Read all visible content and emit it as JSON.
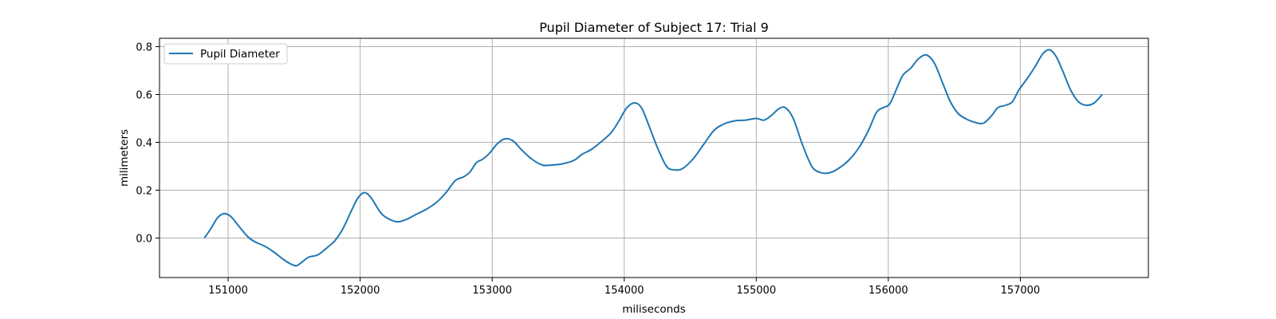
{
  "chart_data": {
    "type": "line",
    "title": "Pupil Diameter of Subject 17: Trial 9",
    "xlabel": "miliseconds",
    "ylabel": "milimeters",
    "xlim": [
      150480,
      157970
    ],
    "ylim": [
      -0.165,
      0.835
    ],
    "xticks": [
      151000,
      152000,
      153000,
      154000,
      155000,
      156000,
      157000
    ],
    "yticks": [
      0.0,
      0.2,
      0.4,
      0.6,
      0.8
    ],
    "ytick_labels": [
      "0.0",
      "0.2",
      "0.4",
      "0.6",
      "0.8"
    ],
    "grid": true,
    "legend": {
      "position": "upper-left",
      "entries": [
        "Pupil Diameter"
      ]
    },
    "colors": {
      "series": "#1f77b4",
      "grid": "#b0b0b0",
      "axes": "#000000"
    },
    "series": [
      {
        "name": "Pupil Diameter",
        "points": [
          [
            150820,
            0.0
          ],
          [
            150870,
            0.04
          ],
          [
            150920,
            0.085
          ],
          [
            150970,
            0.102
          ],
          [
            151020,
            0.09
          ],
          [
            151080,
            0.05
          ],
          [
            151150,
            0.005
          ],
          [
            151200,
            -0.015
          ],
          [
            151280,
            -0.035
          ],
          [
            151350,
            -0.06
          ],
          [
            151420,
            -0.09
          ],
          [
            151480,
            -0.11
          ],
          [
            151520,
            -0.115
          ],
          [
            151560,
            -0.1
          ],
          [
            151610,
            -0.08
          ],
          [
            151680,
            -0.07
          ],
          [
            151750,
            -0.04
          ],
          [
            151810,
            -0.01
          ],
          [
            151870,
            0.04
          ],
          [
            151930,
            0.11
          ],
          [
            151980,
            0.165
          ],
          [
            152030,
            0.19
          ],
          [
            152080,
            0.17
          ],
          [
            152150,
            0.11
          ],
          [
            152200,
            0.085
          ],
          [
            152280,
            0.068
          ],
          [
            152350,
            0.078
          ],
          [
            152420,
            0.098
          ],
          [
            152500,
            0.12
          ],
          [
            152580,
            0.15
          ],
          [
            152650,
            0.19
          ],
          [
            152720,
            0.24
          ],
          [
            152780,
            0.255
          ],
          [
            152830,
            0.275
          ],
          [
            152880,
            0.315
          ],
          [
            152930,
            0.33
          ],
          [
            152980,
            0.355
          ],
          [
            153040,
            0.395
          ],
          [
            153100,
            0.415
          ],
          [
            153160,
            0.405
          ],
          [
            153220,
            0.37
          ],
          [
            153300,
            0.33
          ],
          [
            153380,
            0.305
          ],
          [
            153450,
            0.305
          ],
          [
            153530,
            0.31
          ],
          [
            153620,
            0.325
          ],
          [
            153680,
            0.35
          ],
          [
            153750,
            0.37
          ],
          [
            153820,
            0.4
          ],
          [
            153900,
            0.44
          ],
          [
            153960,
            0.49
          ],
          [
            154020,
            0.545
          ],
          [
            154080,
            0.565
          ],
          [
            154130,
            0.545
          ],
          [
            154180,
            0.48
          ],
          [
            154250,
            0.38
          ],
          [
            154320,
            0.3
          ],
          [
            154380,
            0.285
          ],
          [
            154440,
            0.29
          ],
          [
            154520,
            0.33
          ],
          [
            154600,
            0.39
          ],
          [
            154680,
            0.45
          ],
          [
            154760,
            0.478
          ],
          [
            154840,
            0.49
          ],
          [
            154920,
            0.493
          ],
          [
            155000,
            0.5
          ],
          [
            155060,
            0.493
          ],
          [
            155120,
            0.515
          ],
          [
            155170,
            0.54
          ],
          [
            155220,
            0.545
          ],
          [
            155280,
            0.5
          ],
          [
            155350,
            0.39
          ],
          [
            155420,
            0.3
          ],
          [
            155480,
            0.275
          ],
          [
            155550,
            0.272
          ],
          [
            155620,
            0.29
          ],
          [
            155700,
            0.325
          ],
          [
            155780,
            0.38
          ],
          [
            155850,
            0.45
          ],
          [
            155910,
            0.525
          ],
          [
            155960,
            0.545
          ],
          [
            156010,
            0.56
          ],
          [
            156060,
            0.62
          ],
          [
            156110,
            0.68
          ],
          [
            156170,
            0.71
          ],
          [
            156230,
            0.75
          ],
          [
            156290,
            0.765
          ],
          [
            156350,
            0.73
          ],
          [
            156410,
            0.65
          ],
          [
            156470,
            0.57
          ],
          [
            156530,
            0.52
          ],
          [
            156600,
            0.495
          ],
          [
            156660,
            0.483
          ],
          [
            156720,
            0.48
          ],
          [
            156780,
            0.51
          ],
          [
            156830,
            0.545
          ],
          [
            156890,
            0.555
          ],
          [
            156940,
            0.57
          ],
          [
            156990,
            0.62
          ],
          [
            157050,
            0.665
          ],
          [
            157110,
            0.715
          ],
          [
            157170,
            0.77
          ],
          [
            157220,
            0.787
          ],
          [
            157270,
            0.76
          ],
          [
            157320,
            0.7
          ],
          [
            157380,
            0.62
          ],
          [
            157440,
            0.57
          ],
          [
            157500,
            0.555
          ],
          [
            157560,
            0.565
          ],
          [
            157620,
            0.6
          ]
        ]
      }
    ]
  }
}
